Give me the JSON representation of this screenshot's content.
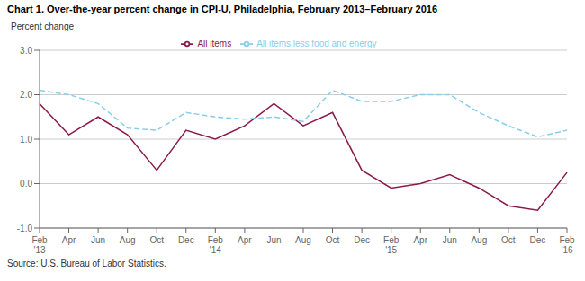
{
  "chart_data": {
    "type": "line",
    "title": "Chart 1. Over-the-year percent change in CPI-U, Philadelphia, February 2013–February 2016",
    "y_label": "Percent change",
    "annotations": [
      "Source: U.S. Bureau of Labor Statistics."
    ],
    "categories": [
      "Feb\n'13",
      "Apr",
      "Jun",
      "Aug",
      "Oct",
      "Dec",
      "Feb\n'14",
      "Apr",
      "Jun",
      "Aug",
      "Oct",
      "Dec",
      "Feb\n'15",
      "Apr",
      "Jun",
      "Aug",
      "Oct",
      "Dec",
      "Feb\n'16"
    ],
    "series": [
      {
        "name": "All items",
        "color": "#8B1A4A",
        "line_style": "solid",
        "values": [
          1.8,
          1.1,
          1.5,
          1.1,
          0.3,
          1.2,
          1.0,
          1.3,
          1.8,
          1.3,
          1.6,
          0.3,
          -0.1,
          0.0,
          0.2,
          -0.1,
          -0.5,
          -0.6,
          0.25
        ]
      },
      {
        "name": "All items less food and energy",
        "color": "#87CEEB",
        "line_style": "dashed",
        "values": [
          2.1,
          2.0,
          1.8,
          1.25,
          1.2,
          1.6,
          1.5,
          1.45,
          1.5,
          1.4,
          2.1,
          1.85,
          1.85,
          2.0,
          2.0,
          1.6,
          1.3,
          1.05,
          1.2
        ]
      }
    ],
    "ylim": [
      -1.0,
      3.0
    ],
    "yticks": [
      {
        "value": -1.0,
        "label": "-1.0"
      },
      {
        "value": 0.0,
        "label": "0.0"
      },
      {
        "value": 1.0,
        "label": "1.0"
      },
      {
        "value": 2.0,
        "label": "2.0"
      },
      {
        "value": 3.0,
        "label": "3.0"
      }
    ],
    "grid": true,
    "legend": "top"
  }
}
